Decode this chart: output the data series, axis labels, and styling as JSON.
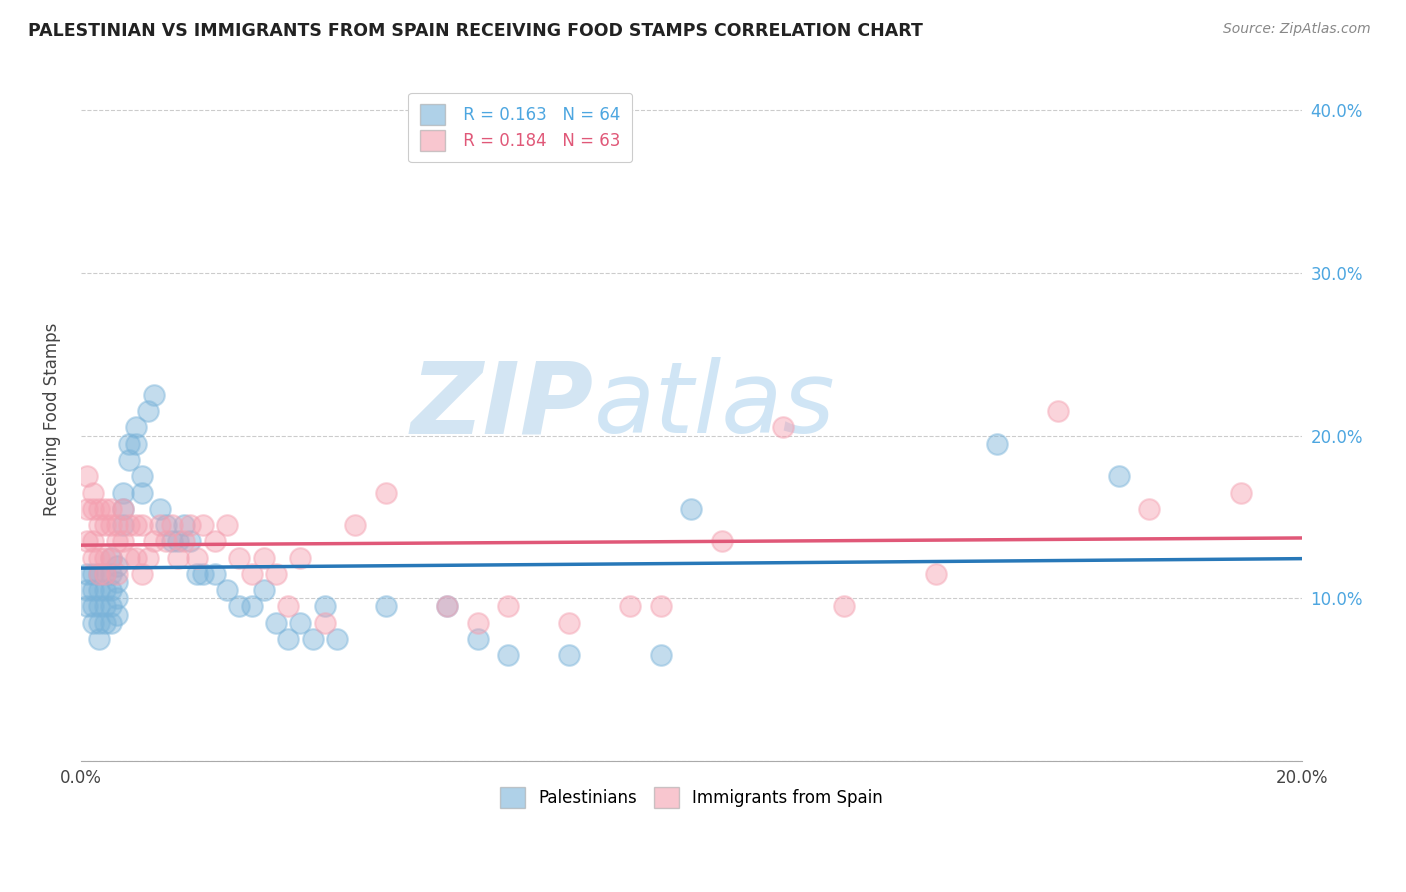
{
  "title": "PALESTINIAN VS IMMIGRANTS FROM SPAIN RECEIVING FOOD STAMPS CORRELATION CHART",
  "source": "Source: ZipAtlas.com",
  "ylabel": "Receiving Food Stamps",
  "xlim": [
    0.0,
    0.2
  ],
  "ylim": [
    0.0,
    0.42
  ],
  "xticks": [
    0.0,
    0.05,
    0.1,
    0.15,
    0.2
  ],
  "yticks": [
    0.0,
    0.1,
    0.2,
    0.3,
    0.4
  ],
  "xtick_labels_bottom": [
    "0.0%",
    "",
    "",
    "",
    "20.0%"
  ],
  "right_ytick_labels": [
    "",
    "10.0%",
    "20.0%",
    "30.0%",
    "40.0%"
  ],
  "blue_color": "#7ab3d9",
  "pink_color": "#f4a0b0",
  "blue_line_color": "#2878b8",
  "pink_line_color": "#e05878",
  "blue_label": "Palestinians",
  "pink_label": "Immigrants from Spain",
  "blue_R": 0.163,
  "blue_N": 64,
  "pink_R": 0.184,
  "pink_N": 63,
  "watermark_zip": "ZIP",
  "watermark_atlas": "atlas",
  "blue_x": [
    0.001,
    0.001,
    0.001,
    0.002,
    0.002,
    0.002,
    0.002,
    0.003,
    0.003,
    0.003,
    0.003,
    0.003,
    0.004,
    0.004,
    0.004,
    0.004,
    0.005,
    0.005,
    0.005,
    0.005,
    0.005,
    0.006,
    0.006,
    0.006,
    0.006,
    0.007,
    0.007,
    0.007,
    0.008,
    0.008,
    0.009,
    0.009,
    0.01,
    0.01,
    0.011,
    0.012,
    0.013,
    0.014,
    0.015,
    0.016,
    0.017,
    0.018,
    0.019,
    0.02,
    0.022,
    0.024,
    0.026,
    0.028,
    0.03,
    0.032,
    0.034,
    0.036,
    0.038,
    0.04,
    0.042,
    0.05,
    0.06,
    0.065,
    0.07,
    0.08,
    0.095,
    0.1,
    0.15,
    0.17
  ],
  "blue_y": [
    0.115,
    0.105,
    0.095,
    0.115,
    0.105,
    0.095,
    0.085,
    0.115,
    0.105,
    0.095,
    0.085,
    0.075,
    0.115,
    0.105,
    0.095,
    0.085,
    0.125,
    0.115,
    0.105,
    0.095,
    0.085,
    0.12,
    0.11,
    0.1,
    0.09,
    0.165,
    0.155,
    0.145,
    0.195,
    0.185,
    0.205,
    0.195,
    0.175,
    0.165,
    0.215,
    0.225,
    0.155,
    0.145,
    0.135,
    0.135,
    0.145,
    0.135,
    0.115,
    0.115,
    0.115,
    0.105,
    0.095,
    0.095,
    0.105,
    0.085,
    0.075,
    0.085,
    0.075,
    0.095,
    0.075,
    0.095,
    0.095,
    0.075,
    0.065,
    0.065,
    0.065,
    0.155,
    0.195,
    0.175
  ],
  "pink_x": [
    0.001,
    0.001,
    0.001,
    0.002,
    0.002,
    0.002,
    0.002,
    0.003,
    0.003,
    0.003,
    0.003,
    0.004,
    0.004,
    0.004,
    0.004,
    0.005,
    0.005,
    0.005,
    0.006,
    0.006,
    0.006,
    0.007,
    0.007,
    0.008,
    0.008,
    0.009,
    0.009,
    0.01,
    0.01,
    0.011,
    0.012,
    0.013,
    0.014,
    0.015,
    0.016,
    0.017,
    0.018,
    0.019,
    0.02,
    0.022,
    0.024,
    0.026,
    0.028,
    0.03,
    0.032,
    0.034,
    0.036,
    0.04,
    0.045,
    0.05,
    0.06,
    0.065,
    0.07,
    0.08,
    0.09,
    0.095,
    0.105,
    0.115,
    0.125,
    0.14,
    0.16,
    0.175,
    0.19
  ],
  "pink_y": [
    0.175,
    0.155,
    0.135,
    0.165,
    0.155,
    0.135,
    0.125,
    0.155,
    0.145,
    0.125,
    0.115,
    0.155,
    0.145,
    0.125,
    0.115,
    0.155,
    0.145,
    0.125,
    0.145,
    0.135,
    0.115,
    0.155,
    0.135,
    0.145,
    0.125,
    0.145,
    0.125,
    0.145,
    0.115,
    0.125,
    0.135,
    0.145,
    0.135,
    0.145,
    0.125,
    0.135,
    0.145,
    0.125,
    0.145,
    0.135,
    0.145,
    0.125,
    0.115,
    0.125,
    0.115,
    0.095,
    0.125,
    0.085,
    0.145,
    0.165,
    0.095,
    0.085,
    0.095,
    0.085,
    0.095,
    0.095,
    0.135,
    0.205,
    0.095,
    0.115,
    0.215,
    0.155,
    0.165
  ]
}
